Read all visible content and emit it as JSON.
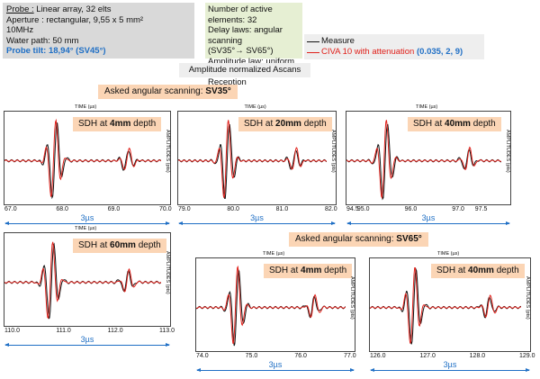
{
  "probe": {
    "label": "Probe :",
    "line1": " Linear array, 32 elts",
    "line2": "Aperture : rectangular, 9,55 x 5 mm²",
    "line3": "10MHz",
    "line4": "Water path: 50 mm",
    "tilt": "Probe tilt: 18,94° (SV45°)"
  },
  "delay": {
    "line1": "Number of active elements: 32",
    "line2": "Delay laws: angular scanning",
    "line3": "(SV35°→ SV65°)",
    "line4": "Amplitude law: uniform",
    "line5": "Transmission = Reception"
  },
  "legend": {
    "measure": "Measure",
    "civa_text": "CIVA 10 with attenuation",
    "civa_params": "(0.035, 2, 9)",
    "measure_color": "#111111",
    "civa_color": "#e0201a"
  },
  "normalized_label": "Amplitude normalized Ascans",
  "asked": {
    "sv35_prefix": "Asked angular scanning: ",
    "sv35_bold": "SV35°",
    "sv65_prefix": "Asked angular scanning: ",
    "sv65_bold": "SV65°"
  },
  "common": {
    "time_label": "TIME (µs)",
    "amp_label": "AMPLITUDES (pts)",
    "span_label": "3µs"
  },
  "panels": [
    {
      "sdh_prefix": "SDH at ",
      "sdh_bold": "4mm",
      "sdh_suffix": " depth",
      "ticks": [
        "67.0",
        "68.0",
        "69.0",
        "70.0"
      ],
      "pulse_center": 0.32
    },
    {
      "sdh_prefix": "SDH at ",
      "sdh_bold": "20mm",
      "sdh_suffix": " depth",
      "ticks": [
        "79.0",
        "80.0",
        "81.0",
        "82.0"
      ],
      "pulse_center": 0.33
    },
    {
      "sdh_prefix": "SDH at ",
      "sdh_bold": "40mm",
      "sdh_suffix": " depth",
      "ticks": [
        "94.5",
        "95.0",
        "96.0",
        "97.0",
        "97.5"
      ],
      "pulse_center": 0.25
    },
    {
      "sdh_prefix": "SDH at ",
      "sdh_bold": "60mm",
      "sdh_suffix": " depth",
      "ticks": [
        "110.0",
        "111.0",
        "112.0",
        "113.0"
      ],
      "pulse_center": 0.3
    },
    {
      "sdh_prefix": "SDH at ",
      "sdh_bold": "4mm",
      "sdh_suffix": " depth",
      "ticks": [
        "74.0",
        "75.0",
        "76.0",
        "77.0"
      ],
      "pulse_center": 0.27
    },
    {
      "sdh_prefix": "SDH at ",
      "sdh_bold": "40mm",
      "sdh_suffix": " depth",
      "ticks": [
        "126.0",
        "127.0",
        "128.0",
        "129.0"
      ],
      "pulse_center": 0.29
    }
  ]
}
